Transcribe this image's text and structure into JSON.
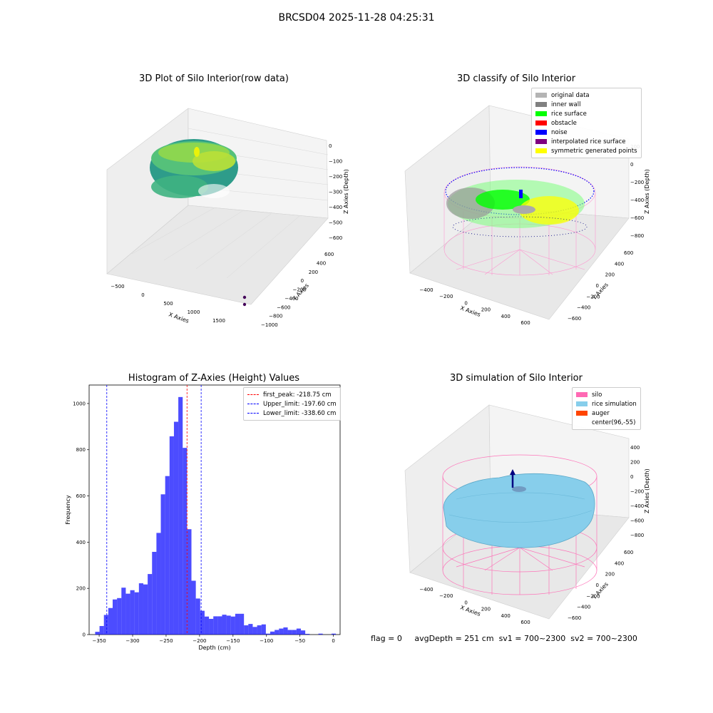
{
  "suptitle": "BRCSD04 2025-11-28 04:25:31",
  "panels": {
    "raw": {
      "title": "3D Plot of Silo Interior(row data)",
      "x_label": "X Axies",
      "y_label": "Y Axies",
      "z_label": "Z Axies (Depth)",
      "x_ticks": [
        "−500",
        "0",
        "500",
        "1000",
        "1500"
      ],
      "y_ticks": [
        "600",
        "400",
        "200",
        "0",
        "−200",
        "−400",
        "−600",
        "−800",
        "−1000"
      ],
      "z_ticks": [
        "0",
        "−100",
        "−200",
        "−300",
        "−400",
        "−500",
        "−600"
      ]
    },
    "classify": {
      "title": "3D classify of Silo Interior",
      "x_label": "X Axies",
      "y_label": "Y Axies",
      "z_label": "Z Axies (Depth)",
      "x_ticks": [
        "−400",
        "−200",
        "0",
        "200",
        "400",
        "600"
      ],
      "y_ticks": [
        "600",
        "400",
        "200",
        "0",
        "−200",
        "−400",
        "−600"
      ],
      "z_ticks": [
        "200",
        "0",
        "−200",
        "−400",
        "−600",
        "−800"
      ],
      "legend": [
        {
          "label": "original data",
          "color": "#b4b4b4"
        },
        {
          "label": "inner wall",
          "color": "#808080"
        },
        {
          "label": "rice surface",
          "color": "#00ff00"
        },
        {
          "label": "obstacle",
          "color": "#ff0000"
        },
        {
          "label": "noise",
          "color": "#0000ff"
        },
        {
          "label": "interpolated rice surface",
          "color": "#800080"
        },
        {
          "label": "symmetric generated points",
          "color": "#ffff00"
        }
      ]
    },
    "simulation": {
      "title": "3D simulation of Silo Interior",
      "x_label": "X Axies",
      "y_label": "Y Axies",
      "z_label": "Z Axies (Depth)",
      "x_ticks": [
        "−400",
        "−200",
        "0",
        "200",
        "400",
        "600"
      ],
      "y_ticks": [
        "600",
        "400",
        "200",
        "0",
        "−200",
        "−400",
        "−600"
      ],
      "z_ticks": [
        "400",
        "200",
        "0",
        "−200",
        "−400",
        "−600",
        "−800"
      ],
      "legend": [
        {
          "label": "silo",
          "color": "#ff69b4"
        },
        {
          "label": "rice simulation",
          "color": "#87ceeb"
        },
        {
          "label": "auger",
          "color": "#ff4500"
        },
        {
          "label": "center(96,-55)",
          "color": ""
        }
      ]
    }
  },
  "footer": {
    "flag": "flag = 0",
    "avg_depth": "avgDepth = 251 cm",
    "sv1": "sv1 = 700~2300",
    "sv2": "sv2 = 700~2300"
  },
  "chart_data": [
    {
      "type": "bar",
      "title": "Histogram of Z-Axies (Height) Values",
      "xlabel": "Depth (cm)",
      "ylabel": "Frequency",
      "xlim": [
        -365,
        10
      ],
      "ylim": [
        0,
        1080
      ],
      "x_ticks": [
        -350,
        -300,
        -250,
        -200,
        -150,
        -100,
        -50,
        0
      ],
      "y_ticks": [
        0,
        200,
        400,
        600,
        800,
        1000
      ],
      "bar_color": "#0000ff",
      "bin_width": 6.54,
      "bins_left": [
        -356.0,
        -349.46,
        -342.92,
        -336.38,
        -329.84,
        -323.3,
        -316.76,
        -310.22,
        -303.68,
        -297.14,
        -290.6,
        -284.06,
        -277.52,
        -270.98,
        -264.44,
        -257.9,
        -251.36,
        -244.82,
        -238.28,
        -231.74,
        -225.2,
        -218.66,
        -212.12,
        -205.58,
        -199.04,
        -192.5,
        -185.96,
        -179.42,
        -172.88,
        -166.34,
        -159.8,
        -153.26,
        -146.72,
        -140.18,
        -133.64,
        -127.1,
        -120.56,
        -114.02,
        -107.48,
        -100.94,
        -94.4,
        -87.86,
        -81.32,
        -74.78,
        -68.24,
        -61.7,
        -55.16,
        -48.62,
        -42.08,
        -35.54,
        -29.0,
        -22.46,
        -15.92,
        -9.38,
        -2.84
      ],
      "values": [
        12,
        37,
        85,
        115,
        152,
        158,
        203,
        177,
        192,
        183,
        222,
        217,
        262,
        358,
        440,
        607,
        686,
        858,
        921,
        1028,
        808,
        456,
        233,
        156,
        103,
        78,
        68,
        79,
        79,
        86,
        82,
        78,
        90,
        90,
        40,
        46,
        33,
        40,
        44,
        4,
        13,
        20,
        26,
        31,
        20,
        20,
        26,
        18,
        3,
        0,
        0,
        4,
        0,
        0,
        4
      ],
      "lines": [
        {
          "label": "first_peak: -218.75 cm",
          "x": -218.75,
          "color": "#ff0000"
        },
        {
          "label": "Upper_limit: -197.60 cm",
          "x": -197.6,
          "color": "#0000ff"
        },
        {
          "label": "Lower_limit: -338.60 cm",
          "x": -338.6,
          "color": "#0000ff"
        }
      ],
      "legend_position": "upper right"
    }
  ]
}
